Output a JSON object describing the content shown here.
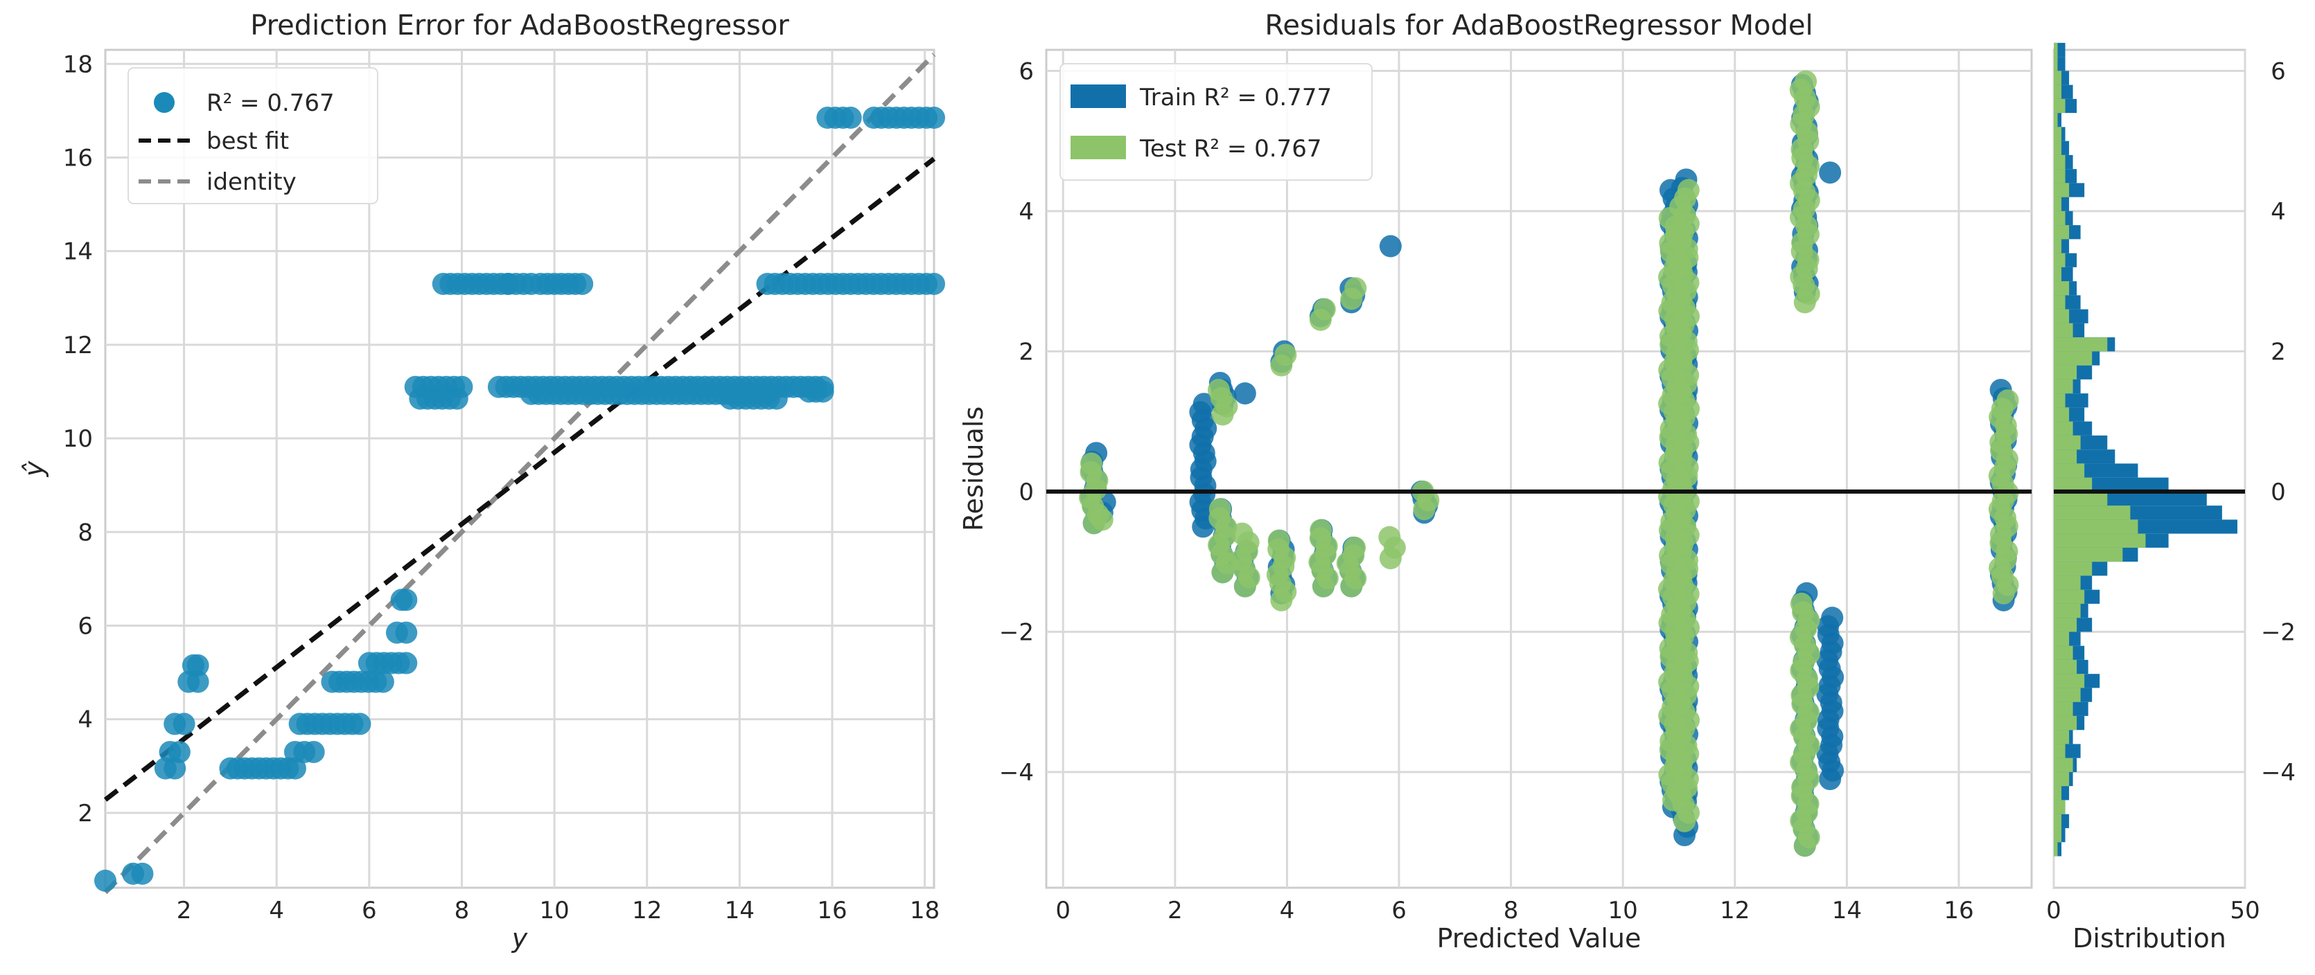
{
  "colors": {
    "train": "#1170aa",
    "test": "#8dc46a",
    "point": "#1b8ab8",
    "bestfit": "#111111",
    "identity": "#8c8c8c"
  },
  "chart_data": [
    {
      "id": "prediction_error",
      "type": "scatter",
      "title": "Prediction Error for AdaBoostRegressor",
      "xlabel": "y",
      "ylabel": "ŷ",
      "xlim": [
        0.3,
        18.2
      ],
      "ylim": [
        0.4,
        18.3
      ],
      "xticks": [
        2,
        4,
        6,
        8,
        10,
        12,
        14,
        16,
        18
      ],
      "yticks": [
        2,
        4,
        6,
        8,
        10,
        12,
        14,
        16,
        18
      ],
      "legend": [
        {
          "key": "scatter",
          "label": "R² = 0.767"
        },
        {
          "key": "bestfit",
          "label": "best fit"
        },
        {
          "key": "identity",
          "label": "identity"
        }
      ],
      "best_fit": {
        "slope": 0.765,
        "intercept": 2.05
      },
      "clusters": [
        {
          "x": [
            0.3,
            0.35
          ],
          "y": 0.55
        },
        {
          "x": [
            0.9,
            1.1
          ],
          "y": 0.7
        },
        {
          "x": [
            1.6,
            1.8
          ],
          "y": 2.95
        },
        {
          "x": [
            1.7,
            1.9
          ],
          "y": 3.3
        },
        {
          "x": [
            1.8,
            2.0
          ],
          "y": 3.9
        },
        {
          "x": [
            2.1,
            2.3
          ],
          "y": 4.8
        },
        {
          "x": [
            2.2,
            2.3
          ],
          "y": 5.15
        },
        {
          "x": [
            3.0,
            4.4
          ],
          "y": 2.95
        },
        {
          "x": [
            4.4,
            4.8
          ],
          "y": 3.3
        },
        {
          "x": [
            4.5,
            5.8
          ],
          "y": 3.9
        },
        {
          "x": [
            5.2,
            6.3
          ],
          "y": 4.8
        },
        {
          "x": [
            6.0,
            6.8
          ],
          "y": 5.2
        },
        {
          "x": [
            6.6,
            6.8
          ],
          "y": 5.85
        },
        {
          "x": [
            6.7,
            6.8
          ],
          "y": 6.55
        },
        {
          "x": [
            7.0,
            8.0
          ],
          "y": 11.1
        },
        {
          "x": [
            7.1,
            7.9
          ],
          "y": 10.85
        },
        {
          "x": [
            7.6,
            9.0
          ],
          "y": 13.3
        },
        {
          "x": [
            9.0,
            9.5
          ],
          "y": 13.3
        },
        {
          "x": [
            9.7,
            10.6
          ],
          "y": 13.3
        },
        {
          "x": [
            8.8,
            15.8
          ],
          "y": 11.1
        },
        {
          "x": [
            9.5,
            14.6
          ],
          "y": 10.95
        },
        {
          "x": [
            13.8,
            14.8
          ],
          "y": 10.85
        },
        {
          "x": [
            15.5,
            15.8
          ],
          "y": 11.0
        },
        {
          "x": [
            14.6,
            18.2
          ],
          "y": 13.3
        },
        {
          "x": [
            15.9,
            16.4
          ],
          "y": 16.85
        },
        {
          "x": [
            16.9,
            18.2
          ],
          "y": 16.85
        }
      ]
    },
    {
      "id": "residuals",
      "type": "scatter",
      "title": "Residuals for AdaBoostRegressor Model",
      "xlabel": "Predicted Value",
      "ylabel": "Residuals",
      "xlim": [
        -0.3,
        17.3
      ],
      "ylim": [
        -5.65,
        6.3
      ],
      "xticks": [
        0,
        2,
        4,
        6,
        8,
        10,
        12,
        14,
        16
      ],
      "yticks": [
        -4,
        -2,
        0,
        2,
        4,
        6
      ],
      "legend": [
        {
          "key": "train",
          "label": "Train R² = 0.777"
        },
        {
          "key": "test",
          "label": "Test R² = 0.767"
        }
      ],
      "columns": [
        {
          "x": 0.55,
          "train": [
            -0.45,
            0.55
          ],
          "test": [
            -0.45,
            0.4
          ]
        },
        {
          "x": 0.7,
          "train": [
            -0.3,
            -0.15
          ],
          "test": [
            -0.4,
            -0.35
          ]
        },
        {
          "x": 2.5,
          "train": [
            -0.5,
            1.25
          ],
          "test": []
        },
        {
          "x": 2.85,
          "train": [
            1.25,
            1.55
          ],
          "test": [
            1.1,
            1.45
          ]
        },
        {
          "x": 2.85,
          "train": [
            -1.15,
            -0.25
          ],
          "test": [
            -1.15,
            -0.25
          ]
        },
        {
          "x": 3.25,
          "train": [
            1.4,
            1.45
          ],
          "test": []
        },
        {
          "x": 3.25,
          "train": [
            -1.35,
            -0.85
          ],
          "test": [
            -1.35,
            -0.6
          ]
        },
        {
          "x": 3.9,
          "train": [
            1.85,
            2.0
          ],
          "test": [
            1.8,
            1.95
          ]
        },
        {
          "x": 3.9,
          "train": [
            -1.45,
            -0.7
          ],
          "test": [
            -1.55,
            -0.7
          ]
        },
        {
          "x": 4.6,
          "train": [
            2.5,
            2.6
          ],
          "test": [
            2.45,
            2.6
          ]
        },
        {
          "x": 4.65,
          "train": [
            -1.35,
            -0.55
          ],
          "test": [
            -1.35,
            -0.55
          ]
        },
        {
          "x": 5.15,
          "train": [
            2.7,
            2.9
          ],
          "test": [
            2.75,
            2.9
          ]
        },
        {
          "x": 5.15,
          "train": [
            -1.35,
            -0.8
          ],
          "test": [
            -1.35,
            -0.8
          ]
        },
        {
          "x": 5.85,
          "train": [
            3.5,
            3.5
          ],
          "test": [
            -0.95,
            -0.65
          ]
        },
        {
          "x": 6.45,
          "train": [
            -0.3,
            0.0
          ],
          "test": [
            -0.25,
            0.0
          ]
        },
        {
          "x": 10.9,
          "train": [
            -4.5,
            4.3
          ],
          "test": [
            -4.4,
            3.9
          ]
        },
        {
          "x": 11.1,
          "train": [
            -4.9,
            4.45
          ],
          "test": [
            -4.7,
            4.3
          ]
        },
        {
          "x": 13.25,
          "train": [
            2.85,
            5.8
          ],
          "test": [
            2.7,
            5.85
          ]
        },
        {
          "x": 13.25,
          "train": [
            -5.05,
            -1.45
          ],
          "test": [
            -5.05,
            -1.6
          ]
        },
        {
          "x": 13.7,
          "train": [
            4.55,
            4.55
          ],
          "test": []
        },
        {
          "x": 13.7,
          "train": [
            -4.1,
            -1.8
          ],
          "test": []
        },
        {
          "x": 16.8,
          "train": [
            -1.55,
            1.45
          ],
          "test": [
            -1.45,
            1.3
          ]
        }
      ]
    },
    {
      "id": "distribution",
      "type": "histogram",
      "xlabel": "Distribution",
      "xlim": [
        0,
        50
      ],
      "xticks": [
        0,
        50
      ],
      "yticks": [
        -4,
        -2,
        0,
        2,
        4,
        6
      ],
      "bin_edges_start": -5.2,
      "bin_width": 0.2,
      "train_counts": [
        2,
        3,
        4,
        3,
        4,
        5,
        6,
        7,
        5,
        8,
        9,
        10,
        12,
        9,
        8,
        7,
        10,
        9,
        12,
        10,
        14,
        22,
        30,
        48,
        44,
        40,
        30,
        22,
        16,
        14,
        10,
        8,
        9,
        7,
        10,
        12,
        16,
        8,
        9,
        7,
        6,
        5,
        6,
        4,
        7,
        5,
        4,
        8,
        6,
        5,
        4,
        3,
        2,
        6,
        5,
        4,
        3,
        3
      ],
      "test_counts": [
        1,
        2,
        2,
        3,
        2,
        4,
        5,
        3,
        4,
        6,
        5,
        7,
        8,
        6,
        5,
        4,
        6,
        7,
        8,
        7,
        10,
        18,
        24,
        22,
        20,
        14,
        10,
        8,
        6,
        7,
        5,
        4,
        3,
        5,
        6,
        10,
        14,
        5,
        4,
        3,
        4,
        2,
        3,
        2,
        4,
        3,
        2,
        4,
        3,
        3,
        2,
        2,
        1,
        3,
        2,
        2,
        1,
        1
      ]
    }
  ]
}
